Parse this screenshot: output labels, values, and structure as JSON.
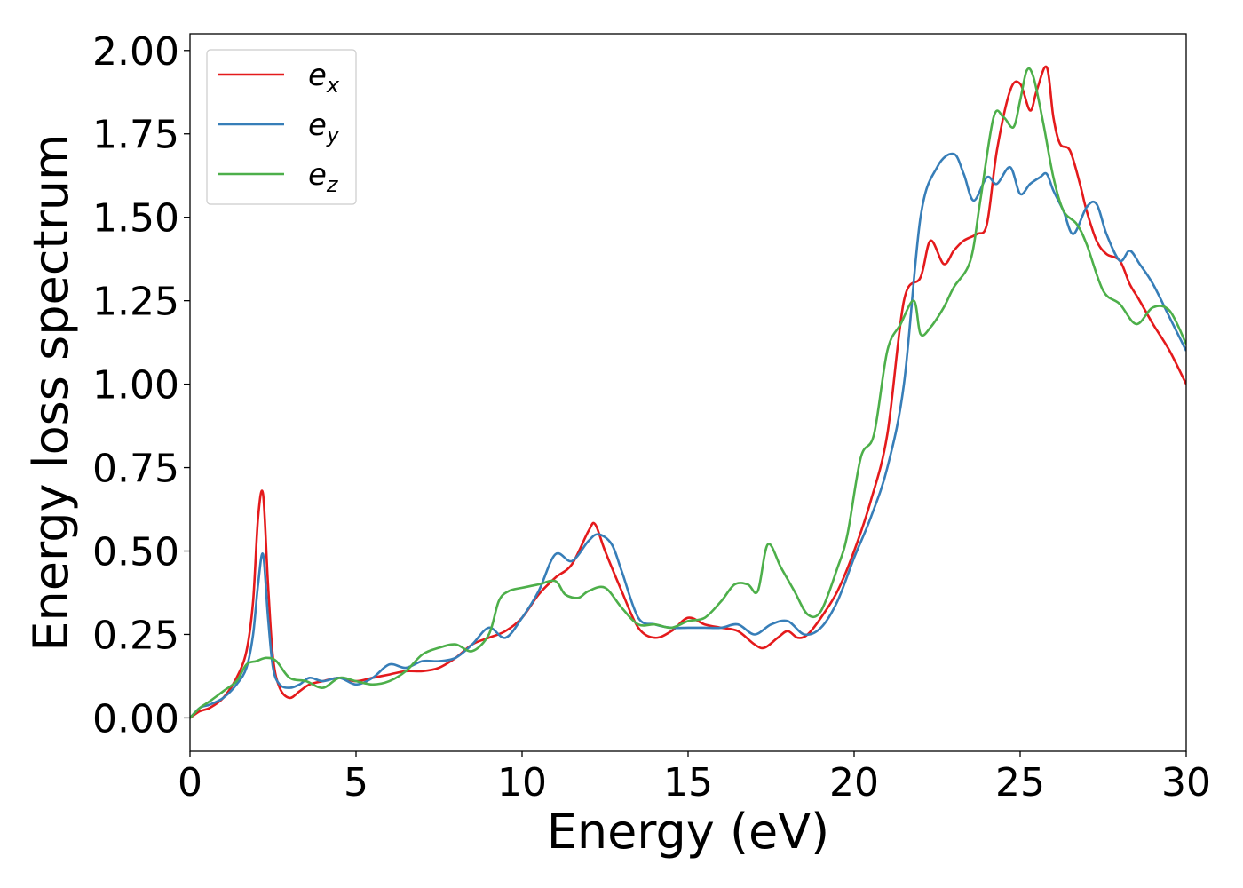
{
  "chart_data": {
    "type": "line",
    "xlabel": "Energy (eV)",
    "ylabel": "Energy loss spectrum",
    "xlim": [
      0,
      30
    ],
    "ylim": [
      -0.1,
      2.05
    ],
    "xticks": [
      "0",
      "5",
      "10",
      "15",
      "20",
      "25",
      "30"
    ],
    "yticks": [
      "0.00",
      "0.25",
      "0.50",
      "0.75",
      "1.00",
      "1.25",
      "1.50",
      "1.75",
      "2.00"
    ],
    "grid": false,
    "legend_position": "top-left",
    "series": [
      {
        "name_base": "e",
        "name_sub": "x",
        "color": "#e41a1c",
        "x": [
          0,
          0.3,
          0.6,
          1.0,
          1.4,
          1.7,
          1.9,
          2.05,
          2.2,
          2.35,
          2.5,
          2.7,
          3.0,
          3.3,
          3.6,
          4.0,
          4.5,
          5.0,
          5.5,
          6.0,
          6.5,
          7.0,
          7.5,
          8.0,
          8.5,
          9.0,
          9.5,
          10.0,
          10.5,
          11.0,
          11.5,
          12.0,
          12.2,
          12.5,
          13.0,
          13.5,
          14.0,
          14.5,
          15.0,
          15.5,
          16.0,
          16.5,
          17.0,
          17.3,
          17.7,
          18.0,
          18.3,
          18.6,
          19.0,
          19.5,
          20.0,
          20.5,
          21.0,
          21.5,
          22.0,
          22.3,
          22.7,
          23.0,
          23.3,
          23.7,
          24.0,
          24.3,
          24.7,
          25.0,
          25.3,
          25.5,
          25.8,
          26.0,
          26.2,
          26.5,
          26.8,
          27.0,
          27.3,
          27.6,
          28.0,
          28.3,
          28.6,
          29.0,
          29.5,
          30.0
        ],
        "y": [
          0.0,
          0.02,
          0.03,
          0.06,
          0.12,
          0.2,
          0.35,
          0.6,
          0.67,
          0.4,
          0.18,
          0.09,
          0.06,
          0.08,
          0.1,
          0.11,
          0.12,
          0.11,
          0.12,
          0.13,
          0.14,
          0.14,
          0.15,
          0.18,
          0.22,
          0.24,
          0.26,
          0.3,
          0.37,
          0.42,
          0.46,
          0.56,
          0.58,
          0.5,
          0.38,
          0.27,
          0.24,
          0.26,
          0.3,
          0.28,
          0.27,
          0.26,
          0.22,
          0.21,
          0.24,
          0.26,
          0.24,
          0.25,
          0.3,
          0.38,
          0.5,
          0.65,
          0.85,
          1.25,
          1.32,
          1.43,
          1.36,
          1.4,
          1.43,
          1.45,
          1.48,
          1.7,
          1.88,
          1.9,
          1.82,
          1.88,
          1.95,
          1.8,
          1.72,
          1.7,
          1.6,
          1.52,
          1.43,
          1.39,
          1.37,
          1.3,
          1.25,
          1.18,
          1.1,
          1.0
        ]
      },
      {
        "name_base": "e",
        "name_sub": "y",
        "color": "#377eb8",
        "x": [
          0,
          0.3,
          0.6,
          1.0,
          1.4,
          1.7,
          1.9,
          2.05,
          2.2,
          2.35,
          2.5,
          2.7,
          3.0,
          3.3,
          3.6,
          4.0,
          4.5,
          5.0,
          5.5,
          6.0,
          6.5,
          7.0,
          7.5,
          8.0,
          8.5,
          9.0,
          9.5,
          10.0,
          10.5,
          11.0,
          11.5,
          12.0,
          12.3,
          12.7,
          13.0,
          13.5,
          14.0,
          14.5,
          15.0,
          15.5,
          16.0,
          16.5,
          17.0,
          17.5,
          18.0,
          18.5,
          19.0,
          19.5,
          20.0,
          20.5,
          21.0,
          21.5,
          22.0,
          22.5,
          23.0,
          23.3,
          23.6,
          24.0,
          24.3,
          24.7,
          25.0,
          25.3,
          25.6,
          25.8,
          26.0,
          26.3,
          26.6,
          27.0,
          27.3,
          27.6,
          28.0,
          28.3,
          28.6,
          29.0,
          29.5,
          30.0
        ],
        "y": [
          0.0,
          0.03,
          0.04,
          0.06,
          0.1,
          0.15,
          0.25,
          0.4,
          0.49,
          0.3,
          0.15,
          0.1,
          0.09,
          0.1,
          0.12,
          0.11,
          0.12,
          0.1,
          0.12,
          0.16,
          0.15,
          0.17,
          0.17,
          0.18,
          0.22,
          0.27,
          0.24,
          0.3,
          0.38,
          0.49,
          0.47,
          0.53,
          0.55,
          0.52,
          0.44,
          0.3,
          0.28,
          0.27,
          0.27,
          0.27,
          0.27,
          0.28,
          0.25,
          0.28,
          0.29,
          0.25,
          0.27,
          0.35,
          0.48,
          0.6,
          0.75,
          1.0,
          1.5,
          1.65,
          1.69,
          1.63,
          1.55,
          1.62,
          1.6,
          1.65,
          1.57,
          1.6,
          1.62,
          1.63,
          1.58,
          1.52,
          1.45,
          1.53,
          1.54,
          1.45,
          1.37,
          1.4,
          1.36,
          1.3,
          1.2,
          1.1
        ]
      },
      {
        "name_base": "e",
        "name_sub": "z",
        "color": "#4daf4a",
        "x": [
          0,
          0.3,
          0.6,
          1.0,
          1.4,
          1.7,
          2.0,
          2.3,
          2.6,
          3.0,
          3.5,
          4.0,
          4.5,
          5.0,
          5.5,
          6.0,
          6.5,
          7.0,
          7.5,
          8.0,
          8.5,
          9.0,
          9.3,
          9.6,
          10.0,
          10.5,
          11.0,
          11.3,
          11.7,
          12.0,
          12.5,
          13.0,
          13.5,
          14.0,
          14.5,
          15.0,
          15.5,
          16.0,
          16.4,
          16.8,
          17.1,
          17.4,
          17.8,
          18.2,
          18.6,
          19.0,
          19.5,
          19.8,
          20.2,
          20.6,
          21.0,
          21.4,
          21.8,
          22.0,
          22.3,
          22.7,
          23.0,
          23.5,
          23.8,
          24.2,
          24.5,
          24.8,
          25.0,
          25.2,
          25.4,
          25.7,
          26.0,
          26.3,
          26.7,
          27.0,
          27.5,
          28.0,
          28.5,
          29.0,
          29.5,
          30.0
        ],
        "y": [
          0.0,
          0.03,
          0.05,
          0.08,
          0.11,
          0.16,
          0.17,
          0.18,
          0.17,
          0.12,
          0.11,
          0.09,
          0.12,
          0.11,
          0.1,
          0.11,
          0.14,
          0.19,
          0.21,
          0.22,
          0.2,
          0.25,
          0.35,
          0.38,
          0.39,
          0.4,
          0.41,
          0.37,
          0.36,
          0.38,
          0.39,
          0.33,
          0.28,
          0.28,
          0.27,
          0.29,
          0.3,
          0.35,
          0.4,
          0.4,
          0.38,
          0.52,
          0.45,
          0.38,
          0.31,
          0.32,
          0.45,
          0.55,
          0.78,
          0.85,
          1.1,
          1.18,
          1.25,
          1.15,
          1.17,
          1.23,
          1.29,
          1.37,
          1.55,
          1.8,
          1.8,
          1.77,
          1.85,
          1.94,
          1.92,
          1.78,
          1.62,
          1.52,
          1.48,
          1.42,
          1.28,
          1.24,
          1.18,
          1.23,
          1.22,
          1.12
        ]
      }
    ]
  }
}
